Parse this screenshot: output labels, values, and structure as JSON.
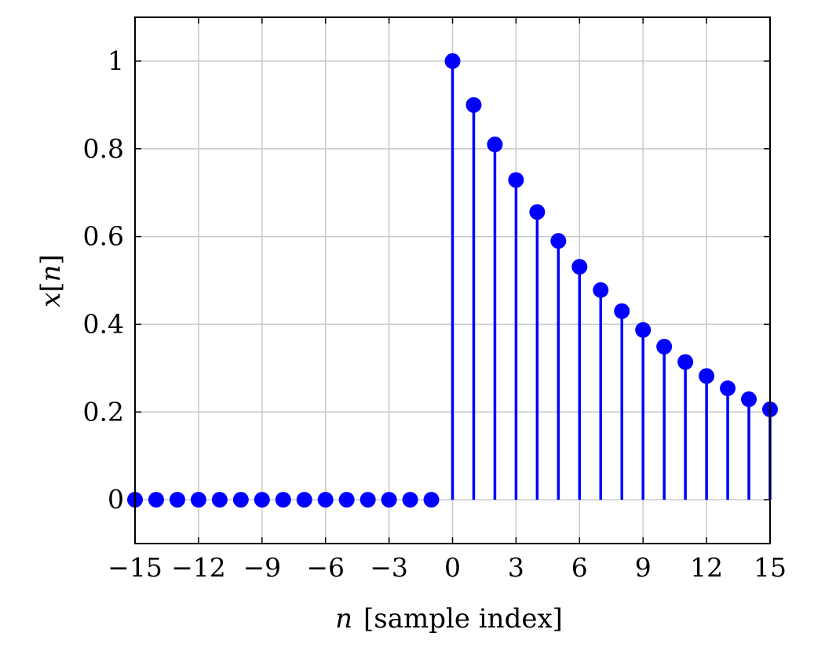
{
  "chart_data": {
    "type": "stem",
    "xlabel": {
      "var": "n",
      "text": "[sample index]"
    },
    "ylabel": {
      "var_pre": "x",
      "bracket_open": "[",
      "var_in": "n",
      "bracket_close": "]"
    },
    "xlim": [
      -15,
      15
    ],
    "ylim": [
      -0.1,
      1.1
    ],
    "x_ticks": [
      {
        "value": -15,
        "label": "−15"
      },
      {
        "value": -12,
        "label": "−12"
      },
      {
        "value": -9,
        "label": "−9"
      },
      {
        "value": -6,
        "label": "−6"
      },
      {
        "value": -3,
        "label": "−3"
      },
      {
        "value": 0,
        "label": "0"
      },
      {
        "value": 3,
        "label": "3"
      },
      {
        "value": 6,
        "label": "6"
      },
      {
        "value": 9,
        "label": "9"
      },
      {
        "value": 12,
        "label": "12"
      },
      {
        "value": 15,
        "label": "15"
      }
    ],
    "y_ticks": [
      {
        "value": 0,
        "label": "0"
      },
      {
        "value": 0.2,
        "label": "0.2"
      },
      {
        "value": 0.4,
        "label": "0.4"
      },
      {
        "value": 0.6,
        "label": "0.6"
      },
      {
        "value": 0.8,
        "label": "0.8"
      },
      {
        "value": 1,
        "label": "1"
      }
    ],
    "grid": true,
    "series": [
      {
        "color": "#0000ff",
        "x": [
          -15,
          -14,
          -13,
          -12,
          -11,
          -10,
          -9,
          -8,
          -7,
          -6,
          -5,
          -4,
          -3,
          -2,
          -1,
          0,
          1,
          2,
          3,
          4,
          5,
          6,
          7,
          8,
          9,
          10,
          11,
          12,
          13,
          14,
          15
        ],
        "y": [
          0,
          0,
          0,
          0,
          0,
          0,
          0,
          0,
          0,
          0,
          0,
          0,
          0,
          0,
          0,
          1,
          0.9,
          0.81,
          0.729,
          0.656,
          0.59,
          0.531,
          0.478,
          0.43,
          0.387,
          0.349,
          0.314,
          0.282,
          0.254,
          0.229,
          0.206
        ]
      }
    ]
  }
}
